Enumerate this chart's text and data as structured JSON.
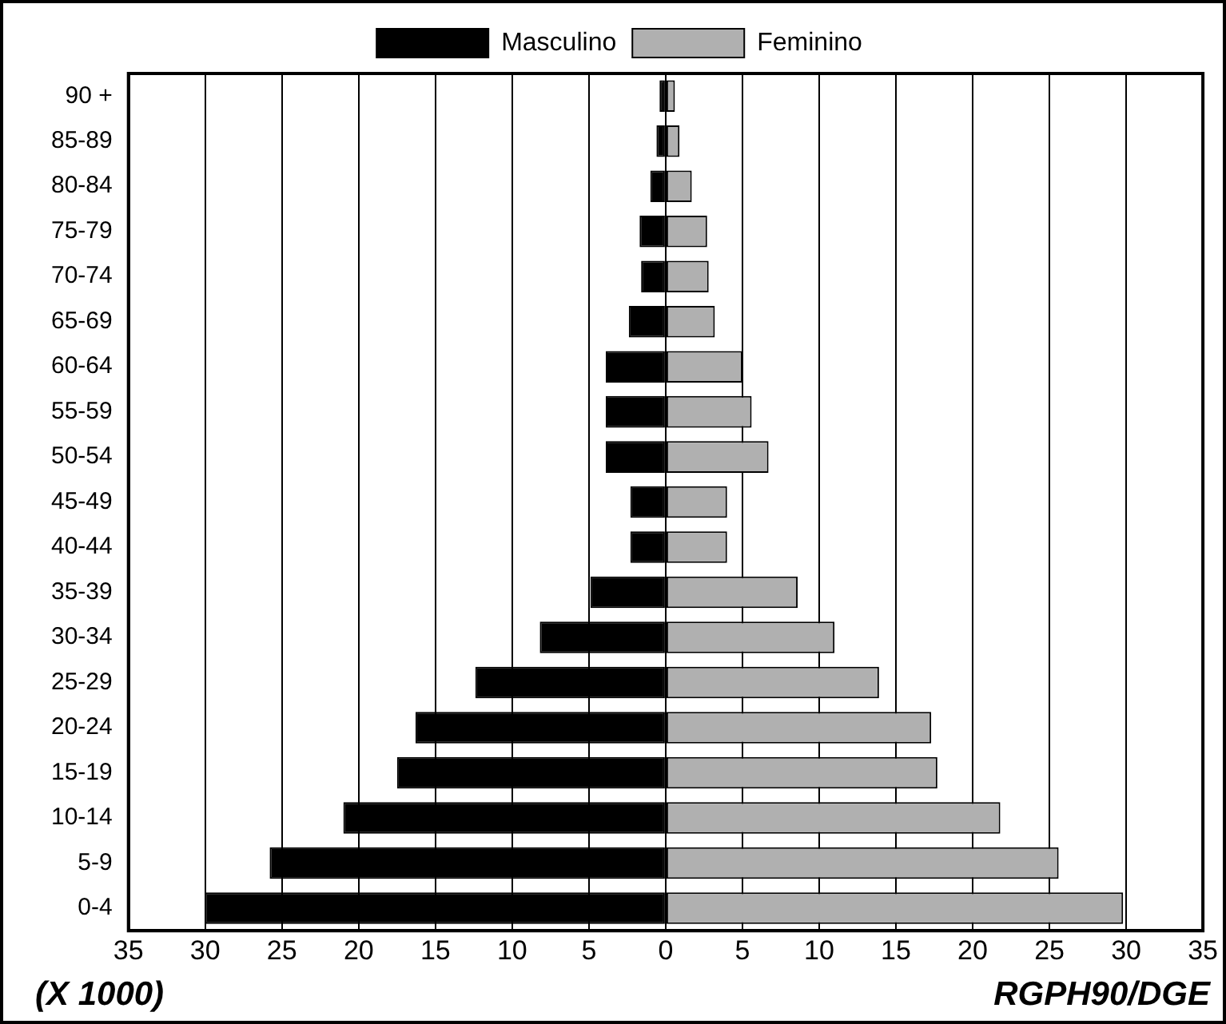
{
  "chart_data": {
    "type": "bar",
    "orientation": "horizontal",
    "stacked": true,
    "categories": [
      "90 +",
      "85-89",
      "80-84",
      "75-79",
      "70-74",
      "65-69",
      "60-64",
      "55-59",
      "50-54",
      "45-49",
      "40-44",
      "35-39",
      "30-34",
      "25-29",
      "20-24",
      "15-19",
      "10-14",
      "5-9",
      "0-4"
    ],
    "series": [
      {
        "name": "Masculino",
        "color": "#000000",
        "values": [
          -0.4,
          -0.6,
          -1.0,
          -1.7,
          -1.6,
          -2.4,
          -3.9,
          -3.9,
          -3.9,
          -2.3,
          -2.3,
          -4.9,
          -8.2,
          -12.4,
          -16.3,
          -17.5,
          -21.0,
          -25.8,
          -30.0
        ]
      },
      {
        "name": "Feminino",
        "color": "#b0b0b0",
        "values": [
          0.6,
          0.9,
          1.7,
          2.7,
          2.8,
          3.2,
          5.0,
          5.6,
          6.7,
          4.0,
          4.0,
          8.6,
          11.0,
          13.9,
          17.3,
          17.7,
          21.8,
          25.6,
          29.8
        ]
      }
    ],
    "xlim": [
      -35,
      35
    ],
    "xticks": [
      {
        "value": -35,
        "label": "35"
      },
      {
        "value": -30,
        "label": "30"
      },
      {
        "value": -25,
        "label": "25"
      },
      {
        "value": -20,
        "label": "20"
      },
      {
        "value": -15,
        "label": "15"
      },
      {
        "value": -10,
        "label": "10"
      },
      {
        "value": -5,
        "label": "5"
      },
      0,
      5,
      10,
      15,
      20,
      25,
      30,
      35
    ],
    "grid": "x",
    "legend": "top",
    "annotations": [
      "(X 1000)",
      "RGPH90/DGE"
    ]
  }
}
